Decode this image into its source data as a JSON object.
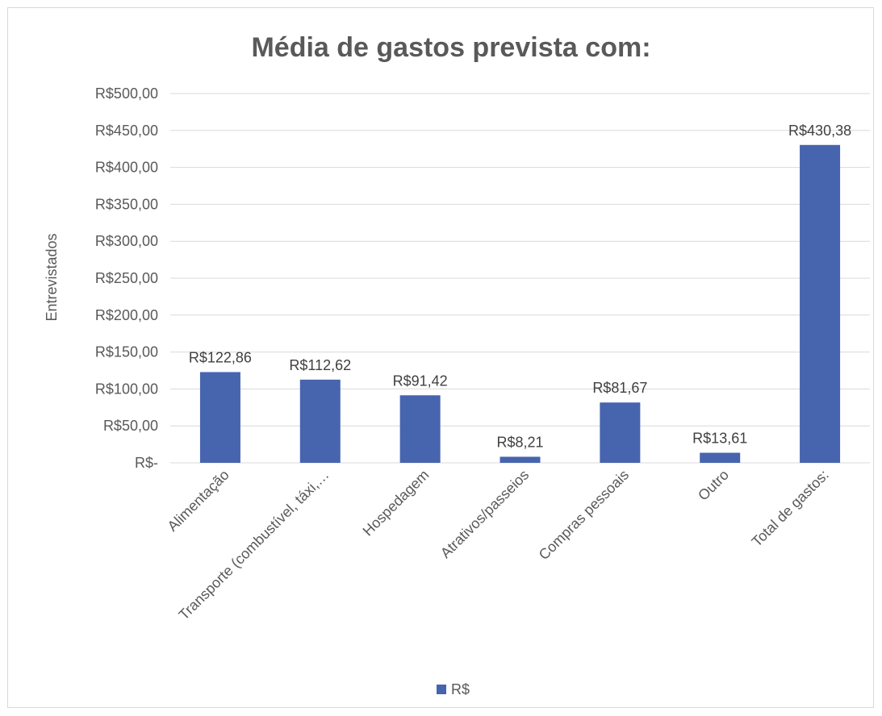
{
  "chart_data": {
    "type": "bar",
    "title": "Média de gastos prevista com:",
    "xlabel": "",
    "ylabel": "Entrevistados",
    "categories": [
      "Alimentação",
      "Transporte (combustível, táxi,…",
      "Hospedagem",
      "Atrativos/passeios",
      "Compras pessoais",
      "Outro",
      "Total de gastos:"
    ],
    "series": [
      {
        "name": "R$",
        "values": [
          122.86,
          112.62,
          91.42,
          8.21,
          81.67,
          13.61,
          430.38
        ],
        "labels": [
          "R$122,86",
          "R$112,62",
          "R$91,42",
          "R$8,21",
          "R$81,67",
          "R$13,61",
          "R$430,38"
        ],
        "color": "#4764ae"
      }
    ],
    "ylim": [
      0,
      500
    ],
    "y_ticks": [
      0,
      50,
      100,
      150,
      200,
      250,
      300,
      350,
      400,
      450,
      500
    ],
    "y_tick_labels": [
      "R$-",
      "R$50,00",
      "R$100,00",
      "R$150,00",
      "R$200,00",
      "R$250,00",
      "R$300,00",
      "R$350,00",
      "R$400,00",
      "R$450,00",
      "R$500,00"
    ],
    "grid": true,
    "legend": "bottom"
  }
}
